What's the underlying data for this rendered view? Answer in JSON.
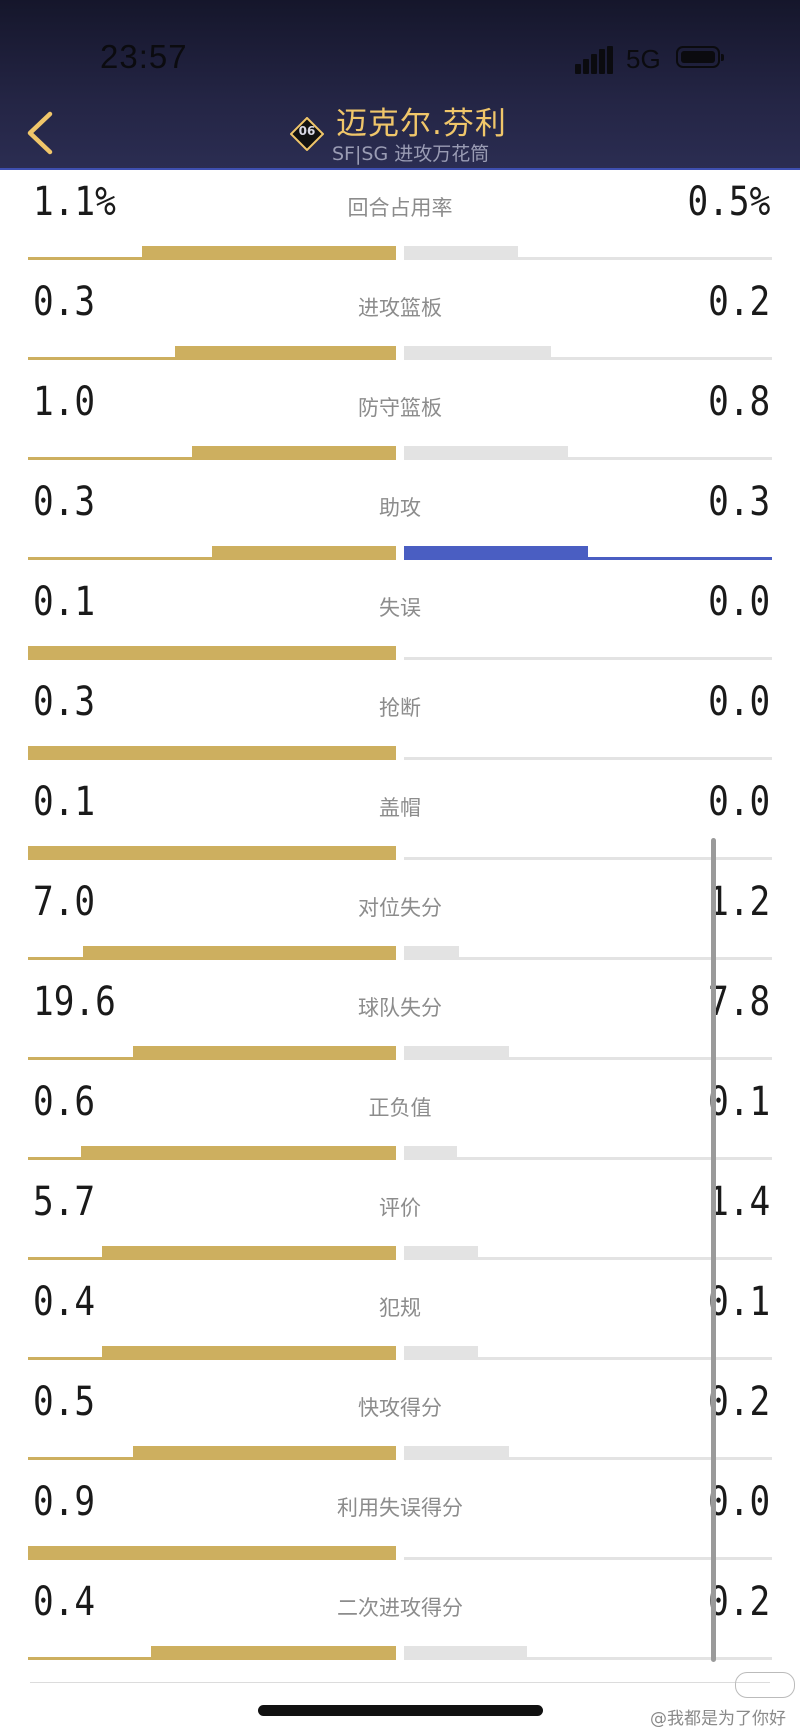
{
  "status_bar": {
    "time": "23:57",
    "network": "5G"
  },
  "header": {
    "jersey_number": "06",
    "player_name": "迈克尔.芬利",
    "subtitle": "SF|SG 进攻万花筒"
  },
  "colors": {
    "left_bar": "#cdaf5f",
    "right_bar": "#e3e3e3",
    "right_bar_equal": "#4a5ec2"
  },
  "stats": [
    {
      "label": "回合占用率",
      "left": "1.1%",
      "right": "0.5%",
      "left_fill": 0.69,
      "right_fill": 0.31,
      "right_color": "gray"
    },
    {
      "label": "进攻篮板",
      "left": "0.3",
      "right": "0.2",
      "left_fill": 0.6,
      "right_fill": 0.4,
      "right_color": "gray"
    },
    {
      "label": "防守篮板",
      "left": "1.0",
      "right": "0.8",
      "left_fill": 0.555,
      "right_fill": 0.445,
      "right_color": "gray"
    },
    {
      "label": "助攻",
      "left": "0.3",
      "right": "0.3",
      "left_fill": 0.5,
      "right_fill": 0.5,
      "right_color": "blue"
    },
    {
      "label": "失误",
      "left": "0.1",
      "right": "0.0",
      "left_fill": 1.0,
      "right_fill": 0.0,
      "right_color": "gray"
    },
    {
      "label": "抢断",
      "left": "0.3",
      "right": "0.0",
      "left_fill": 1.0,
      "right_fill": 0.0,
      "right_color": "gray"
    },
    {
      "label": "盖帽",
      "left": "0.1",
      "right": "0.0",
      "left_fill": 1.0,
      "right_fill": 0.0,
      "right_color": "gray"
    },
    {
      "label": "对位失分",
      "left": "7.0",
      "right": "1.2",
      "left_fill": 0.85,
      "right_fill": 0.15,
      "right_color": "gray"
    },
    {
      "label": "球队失分",
      "left": "19.6",
      "right": "7.8",
      "left_fill": 0.715,
      "right_fill": 0.285,
      "right_color": "gray"
    },
    {
      "label": "正负值",
      "left": "0.6",
      "right": "0.1",
      "left_fill": 0.855,
      "right_fill": 0.145,
      "right_color": "gray"
    },
    {
      "label": "评价",
      "left": "5.7",
      "right": "1.4",
      "left_fill": 0.8,
      "right_fill": 0.2,
      "right_color": "gray"
    },
    {
      "label": "犯规",
      "left": "0.4",
      "right": "0.1",
      "left_fill": 0.8,
      "right_fill": 0.2,
      "right_color": "gray"
    },
    {
      "label": "快攻得分",
      "left": "0.5",
      "right": "0.2",
      "left_fill": 0.715,
      "right_fill": 0.285,
      "right_color": "gray"
    },
    {
      "label": "利用失误得分",
      "left": "0.9",
      "right": "0.0",
      "left_fill": 1.0,
      "right_fill": 0.0,
      "right_color": "gray"
    },
    {
      "label": "二次进攻得分",
      "left": "0.4",
      "right": "0.2",
      "left_fill": 0.665,
      "right_fill": 0.335,
      "right_color": "gray"
    }
  ],
  "watermark": "@我都是为了你好"
}
